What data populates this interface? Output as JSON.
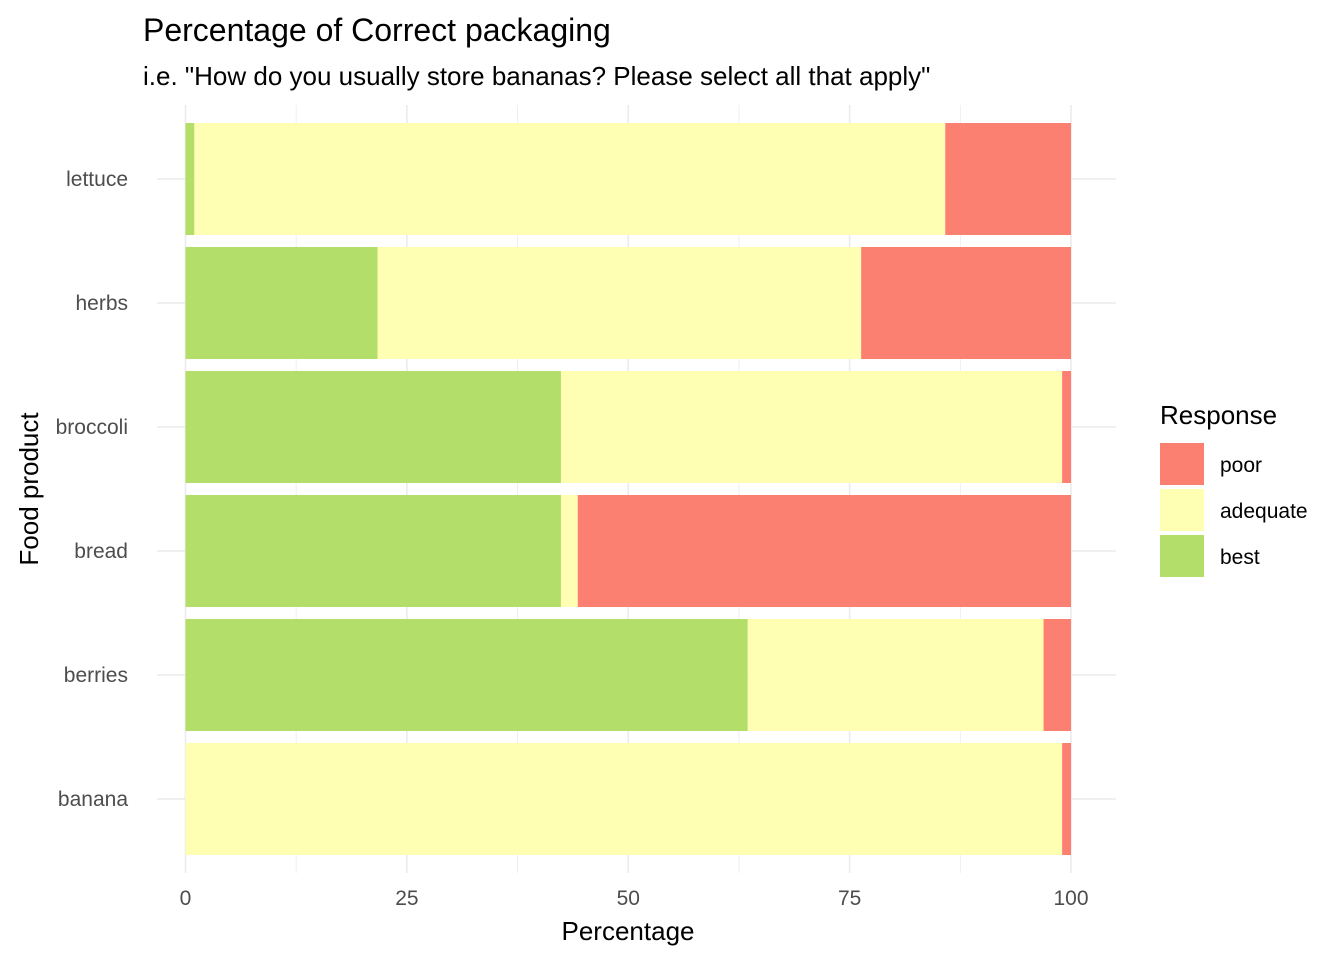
{
  "chart_data": {
    "type": "bar",
    "orientation": "horizontal",
    "stacked": true,
    "title": "Percentage of Correct packaging",
    "subtitle": "i.e. \"How do you usually store bananas? Please select all that apply\"",
    "xlabel": "Percentage",
    "ylabel": "Food product",
    "xlim": [
      0,
      100
    ],
    "x_ticks": [
      "0",
      "25",
      "50",
      "75",
      "100"
    ],
    "x_tick_values": [
      0,
      25,
      50,
      75,
      100
    ],
    "grid": true,
    "legend_title": "Response",
    "legend_position": "right",
    "categories": [
      "lettuce",
      "herbs",
      "broccoli",
      "bread",
      "berries",
      "banana"
    ],
    "series": [
      {
        "name": "best",
        "color": "#B3DE69",
        "values": [
          1,
          21.7,
          42.4,
          42.4,
          63.5,
          0
        ]
      },
      {
        "name": "adequate",
        "color": "#FFFFB3",
        "values": [
          84.8,
          54.6,
          56.6,
          1.9,
          33.4,
          99
        ]
      },
      {
        "name": "poor",
        "color": "#FB8072",
        "values": [
          14.2,
          23.7,
          1,
          55.7,
          3.1,
          1
        ]
      }
    ],
    "legend_order": [
      "poor",
      "adequate",
      "best"
    ]
  }
}
